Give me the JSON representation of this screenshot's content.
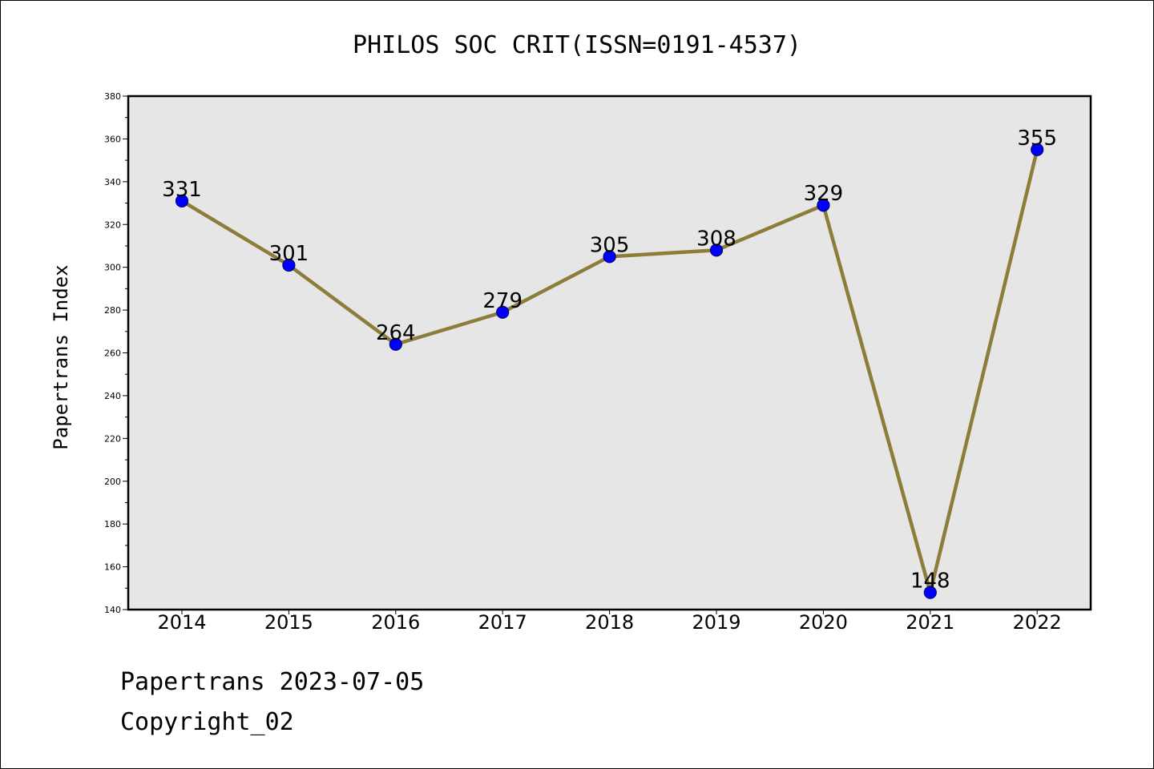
{
  "chart_data": {
    "type": "line",
    "title": "PHILOS SOC CRIT(ISSN=0191-4537)",
    "xlabel": "",
    "ylabel": "Papertrans Index",
    "categories": [
      "2014",
      "2015",
      "2016",
      "2017",
      "2018",
      "2019",
      "2020",
      "2021",
      "2022"
    ],
    "values": [
      331,
      301,
      264,
      279,
      305,
      308,
      329,
      148,
      355
    ],
    "data_labels": [
      "331",
      "301",
      "264",
      "279",
      "305",
      "308",
      "329",
      "148",
      "355"
    ],
    "ylim": [
      140,
      380
    ],
    "yticks": [
      140,
      160,
      180,
      200,
      220,
      240,
      260,
      280,
      300,
      320,
      340,
      360,
      380
    ],
    "grid": false,
    "legend": "none",
    "colors": {
      "line": "#8c7d3a",
      "marker_fill": "#0000ff",
      "marker_edge": "#000080",
      "plot_background": "#e6e6e6",
      "axes_edge": "#000000"
    }
  },
  "footer": {
    "line1": "Papertrans 2023-07-05",
    "line2": "Copyright_02"
  }
}
